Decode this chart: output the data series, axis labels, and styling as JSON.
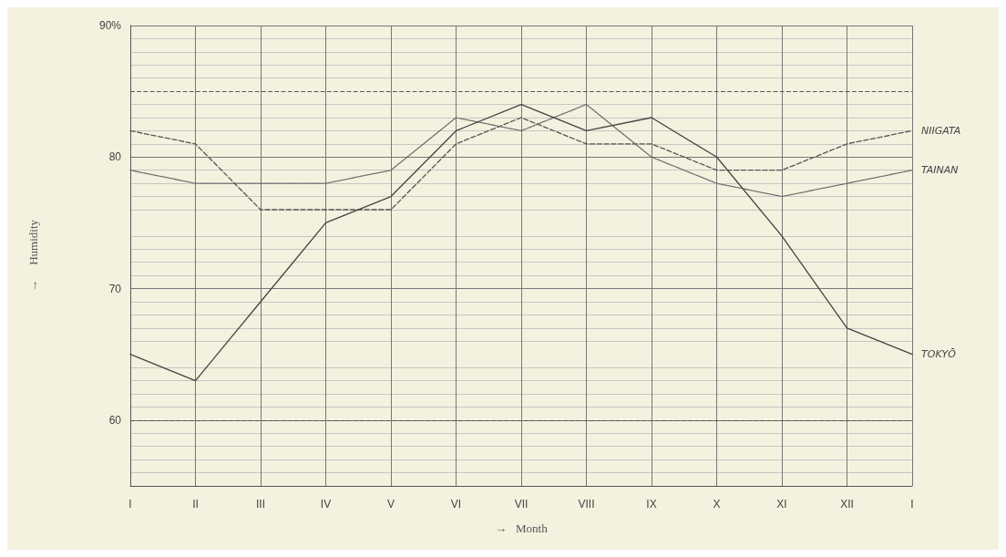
{
  "chart_data": {
    "type": "line",
    "xlabel": "→   Month",
    "ylabel": "→     Humidity",
    "categories": [
      "I",
      "II",
      "III",
      "IV",
      "V",
      "VI",
      "VII",
      "VIII",
      "IX",
      "X",
      "XI",
      "XII",
      "I"
    ],
    "series": [
      {
        "name": "NIIGATA",
        "color": "#555555",
        "line_style": "dashed",
        "values": [
          82,
          81,
          76,
          76,
          76,
          81,
          83,
          81,
          81,
          79,
          79,
          81,
          82
        ]
      },
      {
        "name": "TAINAN",
        "color": "#666666",
        "line_style": "dotted",
        "values": [
          79,
          78,
          78,
          78,
          79,
          83,
          82,
          84,
          80,
          78,
          77,
          78,
          79
        ]
      },
      {
        "name": "TOKYŌ",
        "color": "#444444",
        "line_style": "solid",
        "values": [
          65,
          63,
          69,
          75,
          77,
          82,
          84,
          82,
          83,
          80,
          74,
          67,
          65
        ]
      }
    ],
    "ylim": [
      55,
      90
    ],
    "yticks": [
      60,
      70,
      80,
      {
        "value": 90,
        "label": "90%"
      }
    ],
    "ref_lines": [
      {
        "axis": "y",
        "value": 60,
        "line_style": "dashed",
        "color": "#555555"
      },
      {
        "axis": "y",
        "value": 85,
        "line_style": "dashed",
        "color": "#555555"
      }
    ],
    "grid": true,
    "marker": "none"
  }
}
